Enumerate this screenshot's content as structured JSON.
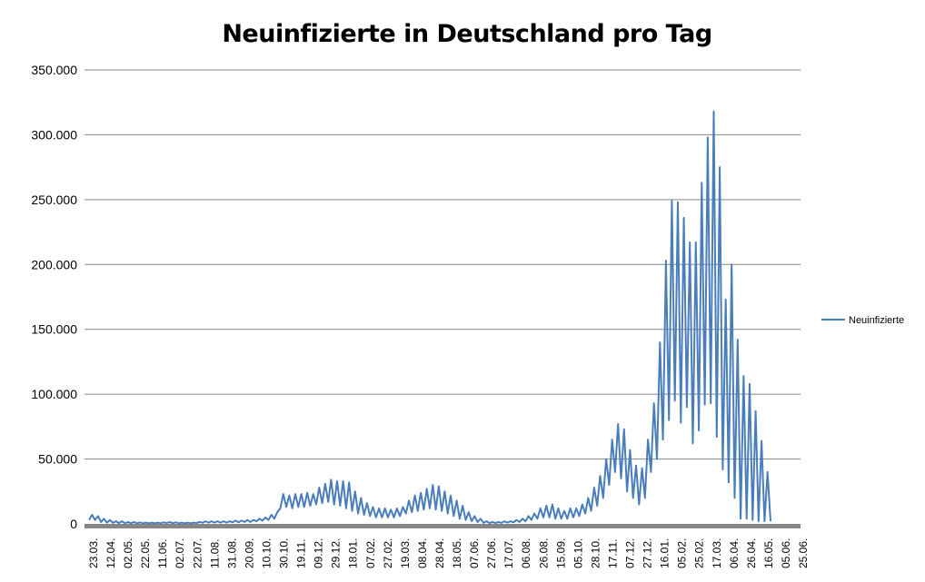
{
  "chart_data": {
    "type": "line",
    "title": "Neuinfizierte in Deutschland pro Tag",
    "xlabel": "",
    "ylabel": "",
    "ylim": [
      0,
      350000
    ],
    "y_ticks": [
      0,
      50000,
      100000,
      150000,
      200000,
      250000,
      300000,
      350000
    ],
    "y_tick_labels": [
      "0",
      "50.000",
      "100.000",
      "150.000",
      "200.000",
      "250.000",
      "300.000",
      "350.000"
    ],
    "x_tick_labels": [
      "23.03.",
      "12.04.",
      "02.05.",
      "22.05.",
      "11.06.",
      "02.07.",
      "22.07.",
      "11.08.",
      "31.08.",
      "20.09.",
      "10.10.",
      "30.10.",
      "19.11.",
      "09.12.",
      "29.12.",
      "18.01.",
      "07.02.",
      "27.02.",
      "19.03.",
      "08.04.",
      "28.04.",
      "18.05.",
      "07.06.",
      "27.06.",
      "17.07.",
      "06.08.",
      "26.08.",
      "15.09.",
      "05.10.",
      "28.10.",
      "17.11.",
      "07.12.",
      "27.12.",
      "16.01.",
      "05.02.",
      "25.02.",
      "17.03.",
      "06.04.",
      "26.04.",
      "16.05.",
      "05.06.",
      "25.06."
    ],
    "grid": true,
    "legend": "right",
    "series": [
      {
        "name": "Neuinfizierte",
        "color": "#4a7ebb",
        "weekly_max": [
          7000,
          6000,
          4000,
          3000,
          2000,
          2000,
          1500,
          1500,
          1200,
          1000,
          1000,
          1000,
          1200,
          1500,
          1200,
          1000,
          1000,
          1000,
          1500,
          2000,
          2000,
          2000,
          2000,
          2000,
          2500,
          2500,
          3000,
          3000,
          4000,
          5000,
          7000,
          9000,
          23000,
          22000,
          23000,
          23000,
          24000,
          23000,
          28000,
          31000,
          34000,
          33000,
          33000,
          32000,
          25000,
          20000,
          16000,
          13000,
          12000,
          12000,
          11000,
          12000,
          13000,
          18000,
          22000,
          24000,
          27000,
          30000,
          29000,
          25000,
          22000,
          18000,
          14000,
          9000,
          6000,
          4000,
          2000,
          1500,
          1500,
          2000,
          2000,
          3000,
          4000,
          6000,
          8000,
          12000,
          14000,
          15000,
          12000,
          10000,
          12000,
          12000,
          15000,
          20000,
          28000,
          37000,
          50000,
          65000,
          77000,
          73000,
          57000,
          45000,
          43000,
          65000,
          93000,
          140000,
          203000,
          249000,
          248000,
          236000,
          217000,
          217000,
          263000,
          298000,
          318000,
          275000,
          173000,
          200000,
          142000,
          114000,
          108000,
          87000,
          64000,
          40000
        ],
        "weekly_min": [
          3000,
          3000,
          1500,
          1000,
          800,
          600,
          500,
          500,
          400,
          400,
          400,
          400,
          500,
          600,
          500,
          500,
          500,
          500,
          700,
          900,
          1000,
          1000,
          1000,
          1000,
          1200,
          1200,
          1500,
          1500,
          2000,
          2500,
          3000,
          4000,
          12000,
          13000,
          12000,
          13000,
          13000,
          14000,
          15000,
          16000,
          17000,
          15000,
          14000,
          12000,
          10000,
          8000,
          7000,
          6000,
          5000,
          5000,
          5000,
          5000,
          6000,
          8000,
          9000,
          10000,
          11000,
          12000,
          11000,
          10000,
          8000,
          6000,
          4000,
          3000,
          2000,
          1500,
          800,
          600,
          600,
          800,
          1000,
          1200,
          1500,
          2000,
          3000,
          4000,
          5000,
          5000,
          4000,
          4000,
          4000,
          5000,
          6000,
          8000,
          10000,
          14000,
          20000,
          30000,
          40000,
          35000,
          25000,
          20000,
          15000,
          20000,
          40000,
          50000,
          65000,
          80000,
          95000,
          78000,
          90000,
          62000,
          72000,
          92000,
          93000,
          67000,
          42000,
          32000,
          20000,
          4000,
          4000,
          3000,
          2000,
          2000
        ]
      }
    ]
  }
}
